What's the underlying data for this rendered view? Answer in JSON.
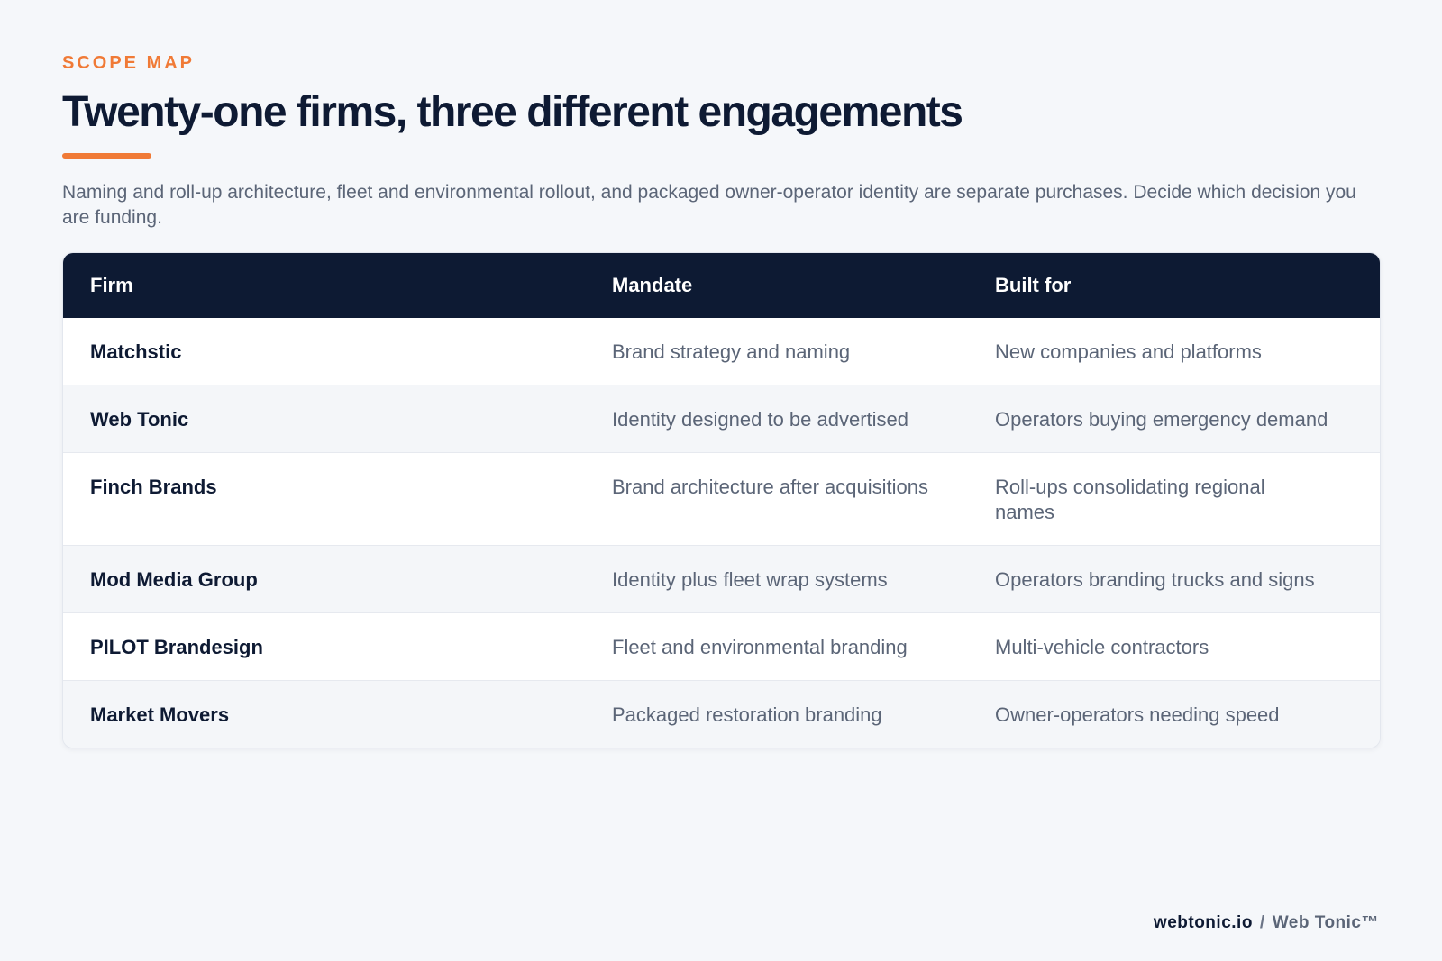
{
  "header": {
    "eyebrow": "SCOPE MAP",
    "title": "Twenty-one firms, three different engagements",
    "subtitle": "Naming and roll-up architecture, fleet and environmental rollout, and packaged owner-operator identity are separate purchases. Decide which decision you are funding."
  },
  "table": {
    "columns": [
      "Firm",
      "Mandate",
      "Built for"
    ],
    "rows": [
      {
        "firm": "Matchstic",
        "mandate": "Brand strategy and naming",
        "built_for": "New companies and platforms"
      },
      {
        "firm": "Web Tonic",
        "mandate": "Identity designed to be advertised",
        "built_for": "Operators buying emergency demand"
      },
      {
        "firm": "Finch Brands",
        "mandate": "Brand architecture after acquisitions",
        "built_for": "Roll-ups consolidating regional names"
      },
      {
        "firm": "Mod Media Group",
        "mandate": "Identity plus fleet wrap systems",
        "built_for": "Operators branding trucks and signs"
      },
      {
        "firm": "PILOT Brandesign",
        "mandate": "Fleet and environmental branding",
        "built_for": "Multi-vehicle contractors"
      },
      {
        "firm": "Market Movers",
        "mandate": "Packaged restoration branding",
        "built_for": "Owner-operators needing speed"
      }
    ]
  },
  "footer": {
    "domain": "webtonic.io",
    "separator": "/",
    "brand": "Web Tonic™"
  },
  "colors": {
    "accent": "#f07a36",
    "header_bg": "#0d1a33",
    "page_bg": "#f5f7fa"
  }
}
